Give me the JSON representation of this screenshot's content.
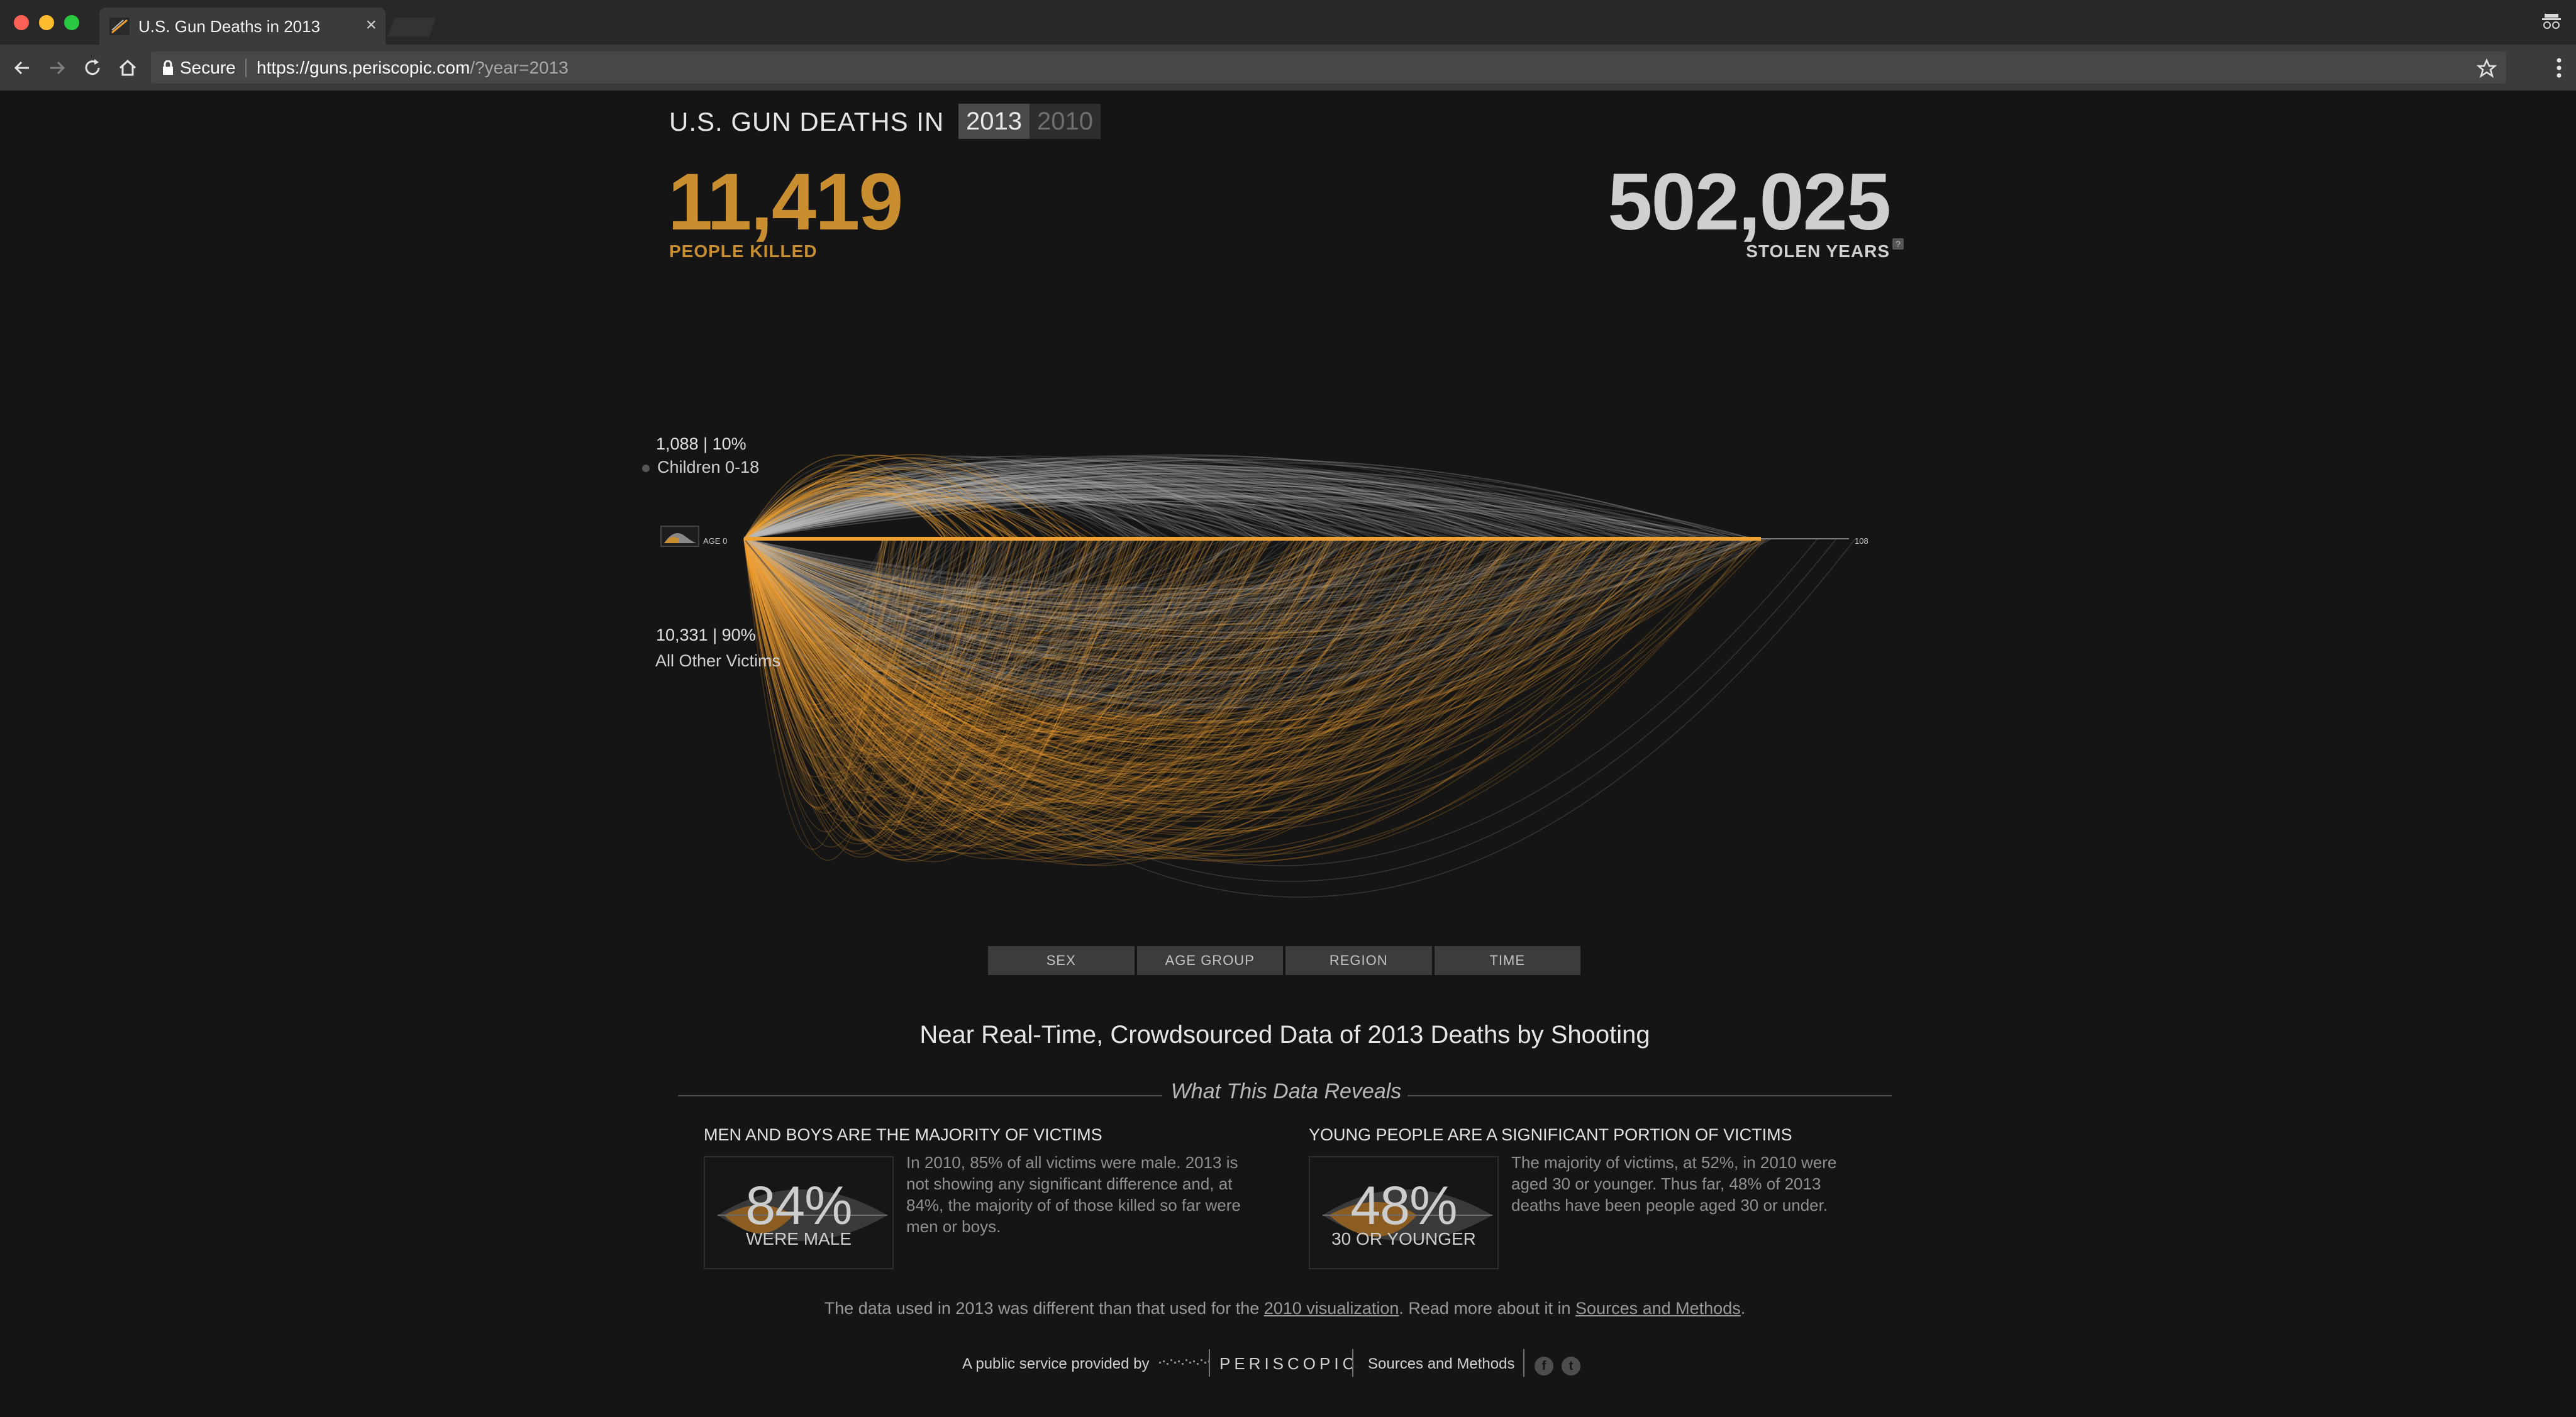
{
  "browser": {
    "tab_title": "U.S. Gun Deaths in 2013",
    "tab_close": "×",
    "secure_label": "Secure",
    "url_host": "https://guns.periscopic.com",
    "url_path": "/?year=2013"
  },
  "header": {
    "headline": "U.S. GUN DEATHS IN",
    "years": [
      "2013",
      "2010"
    ],
    "active_year": "2013"
  },
  "stats": {
    "killed_value": "11,419",
    "killed_label": "PEOPLE KILLED",
    "stolen_value": "502,025",
    "stolen_label": "STOLEN YEARS",
    "stolen_help": "?"
  },
  "visualization": {
    "children_stat": "1,088 | 10%",
    "children_label": "Children 0-18",
    "other_stat": "10,331 | 90%",
    "other_label": "All Other Victims",
    "age_start_label": "AGE 0",
    "age_end_label": "108",
    "accent_color": "#f0a030",
    "neutral_color": "#bdbdbd"
  },
  "filters": [
    "SEX",
    "AGE GROUP",
    "REGION",
    "TIME"
  ],
  "section": {
    "title": "Near Real-Time, Crowdsourced Data of 2013 Deaths by Shooting",
    "reveals_title": "What This Data Reveals"
  },
  "facts": [
    {
      "heading": "MEN AND BOYS ARE THE MAJORITY OF VICTIMS",
      "percent": "84%",
      "percent_label": "WERE MALE",
      "text_lines": [
        "In 2010, 85% of all victims were male. 2013 is",
        "not showing any significant difference and, at",
        "84%, the majority of of those killed so far were",
        "men or boys."
      ]
    },
    {
      "heading": "YOUNG PEOPLE ARE A SIGNIFICANT PORTION OF VICTIMS",
      "percent": "48%",
      "percent_label": "30 OR YOUNGER",
      "text_lines": [
        "The majority of victims, at 52%, in 2010 were",
        "aged 30 or younger. Thus far, 48% of 2013",
        "deaths have been people aged 30 or under."
      ]
    }
  ],
  "footnote": {
    "part1": "The data used in 2013 was different than that used for the ",
    "link1": "2010 visualization",
    "part2": ". Read more about it in ",
    "link2": "Sources and Methods",
    "part3": "."
  },
  "footer": {
    "credit": "A public service provided by",
    "brand": "PERISCOPIC",
    "sources_link": "Sources and Methods",
    "facebook": "f",
    "twitter": "t"
  }
}
